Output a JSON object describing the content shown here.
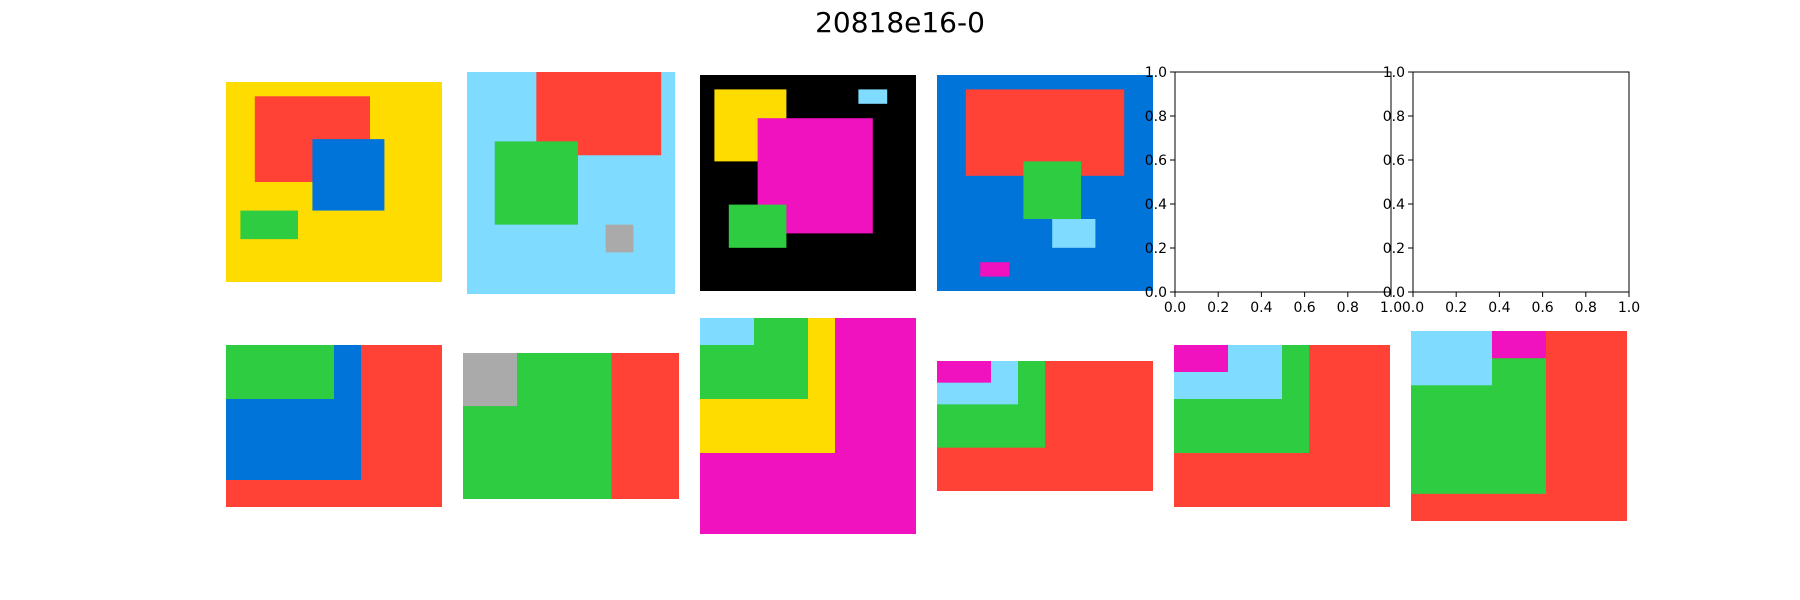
{
  "title": "20818e16-0",
  "colors": {
    "yellow": "#FFDC00",
    "red": "#FF4136",
    "blue": "#0074D9",
    "green": "#2ECC40",
    "lightblue": "#7FDBFF",
    "gray": "#AAAAAA",
    "black": "#000000",
    "magenta": "#F012BE"
  },
  "panels": [
    {
      "id": "r1-1",
      "rows": 14,
      "cols": 15,
      "bg": "yellow",
      "rects": [
        {
          "c": "red",
          "r0": 1,
          "c0": 2,
          "h": 6,
          "w": 8
        },
        {
          "c": "blue",
          "r0": 4,
          "c0": 6,
          "h": 5,
          "w": 5
        },
        {
          "c": "green",
          "r0": 9,
          "c0": 1,
          "h": 2,
          "w": 4
        }
      ]
    },
    {
      "id": "r1-2",
      "rows": 16,
      "cols": 15,
      "bg": "lightblue",
      "rects": [
        {
          "c": "red",
          "r0": 0,
          "c0": 5,
          "h": 6,
          "w": 9
        },
        {
          "c": "green",
          "r0": 5,
          "c0": 2,
          "h": 6,
          "w": 6
        },
        {
          "c": "gray",
          "r0": 11,
          "c0": 10,
          "h": 2,
          "w": 2
        }
      ]
    },
    {
      "id": "r1-3",
      "rows": 15,
      "cols": 15,
      "bg": "black",
      "rects": [
        {
          "c": "yellow",
          "r0": 1,
          "c0": 1,
          "h": 5,
          "w": 5
        },
        {
          "c": "lightblue",
          "r0": 1,
          "c0": 11,
          "h": 1,
          "w": 2
        },
        {
          "c": "magenta",
          "r0": 3,
          "c0": 4,
          "h": 8,
          "w": 8
        },
        {
          "c": "green",
          "r0": 9,
          "c0": 2,
          "h": 3,
          "w": 4
        }
      ]
    },
    {
      "id": "r1-4",
      "rows": 15,
      "cols": 15,
      "bg": "blue",
      "rects": [
        {
          "c": "red",
          "r0": 1,
          "c0": 2,
          "h": 6,
          "w": 11
        },
        {
          "c": "green",
          "r0": 6,
          "c0": 6,
          "h": 4,
          "w": 4
        },
        {
          "c": "lightblue",
          "r0": 10,
          "c0": 8,
          "h": 2,
          "w": 3
        },
        {
          "c": "magenta",
          "r0": 13,
          "c0": 3,
          "h": 1,
          "w": 2
        }
      ]
    },
    {
      "id": "r2-1",
      "rows": 12,
      "cols": 16,
      "bg": "red",
      "rects": [
        {
          "c": "blue",
          "r0": 0,
          "c0": 0,
          "h": 10,
          "w": 10
        },
        {
          "c": "green",
          "r0": 0,
          "c0": 0,
          "h": 4,
          "w": 8
        }
      ]
    },
    {
      "id": "r2-2",
      "rows": 11,
      "cols": 16,
      "bg": "red",
      "rects": [
        {
          "c": "green",
          "r0": 0,
          "c0": 0,
          "h": 11,
          "w": 11
        },
        {
          "c": "gray",
          "r0": 0,
          "c0": 0,
          "h": 4,
          "w": 4
        }
      ]
    },
    {
      "id": "r2-3",
      "rows": 16,
      "cols": 16,
      "bg": "magenta",
      "rects": [
        {
          "c": "yellow",
          "r0": 0,
          "c0": 0,
          "h": 10,
          "w": 10
        },
        {
          "c": "green",
          "r0": 0,
          "c0": 0,
          "h": 6,
          "w": 8
        },
        {
          "c": "lightblue",
          "r0": 0,
          "c0": 0,
          "h": 2,
          "w": 4
        }
      ]
    },
    {
      "id": "r2-4",
      "rows": 12,
      "cols": 16,
      "bg": "red",
      "rects": [
        {
          "c": "green",
          "r0": 0,
          "c0": 0,
          "h": 8,
          "w": 8
        },
        {
          "c": "lightblue",
          "r0": 0,
          "c0": 0,
          "h": 4,
          "w": 6
        },
        {
          "c": "magenta",
          "r0": 0,
          "c0": 0,
          "h": 2,
          "w": 4
        }
      ]
    },
    {
      "id": "r2-5",
      "rows": 12,
      "cols": 16,
      "bg": "red",
      "rects": [
        {
          "c": "green",
          "r0": 0,
          "c0": 0,
          "h": 8,
          "w": 10
        },
        {
          "c": "lightblue",
          "r0": 0,
          "c0": 0,
          "h": 4,
          "w": 8
        },
        {
          "c": "magenta",
          "r0": 0,
          "c0": 0,
          "h": 2,
          "w": 4
        }
      ]
    },
    {
      "id": "r2-6",
      "rows": 14,
      "cols": 16,
      "bg": "red",
      "rects": [
        {
          "c": "green",
          "r0": 2,
          "c0": 0,
          "h": 10,
          "w": 10
        },
        {
          "c": "lightblue",
          "r0": 0,
          "c0": 0,
          "h": 4,
          "w": 6
        },
        {
          "c": "magenta",
          "r0": 0,
          "c0": 6,
          "h": 2,
          "w": 4
        }
      ]
    }
  ],
  "empty_axes": [
    {
      "id": "empty-1",
      "xticks": [
        "0.0",
        "0.2",
        "0.4",
        "0.6",
        "0.8",
        "1.0"
      ],
      "yticks": [
        "0.0",
        "0.2",
        "0.4",
        "0.6",
        "0.8",
        "1.0"
      ]
    },
    {
      "id": "empty-2",
      "xticks": [
        "0.0",
        "0.2",
        "0.4",
        "0.6",
        "0.8",
        "1.0"
      ],
      "yticks": [
        "0.0",
        "0.2",
        "0.4",
        "0.6",
        "0.8",
        "1.0"
      ]
    }
  ]
}
